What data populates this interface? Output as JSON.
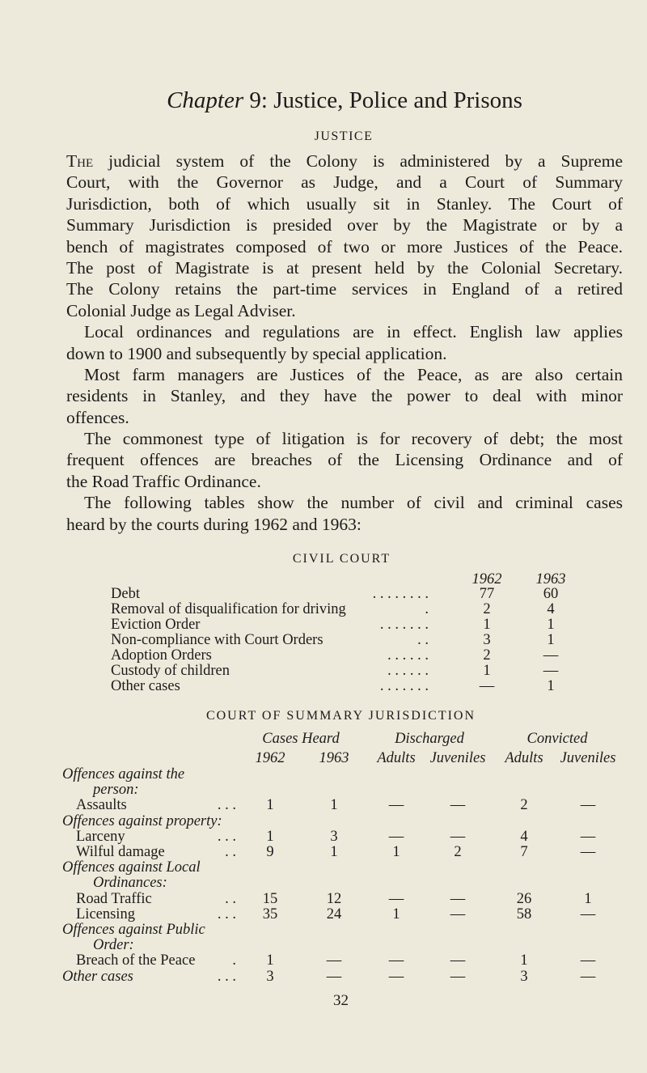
{
  "title": {
    "chapter_word": "Chapter",
    "rest": "9: Justice, Police and Prisons"
  },
  "section_heading": "JUSTICE",
  "paragraphs": [
    {
      "lead": "The",
      "lines": [
        " judicial system of the Colony is administered by a Supreme",
        "Court, with the Governor as Judge, and a Court of Summary",
        "Jurisdiction, both of which usually sit in Stanley. The Court of",
        "Summary Jurisdiction is presided over by the Magistrate or by a",
        "bench of magistrates composed of two or more Justices of the Peace.",
        "The post of Magistrate is at present held by the Colonial Secretary.",
        "The Colony retains the part-time services in England of a retired",
        "Colonial Judge as Legal Adviser."
      ]
    },
    {
      "lines": [
        "Local ordinances and regulations are in effect. English law applies",
        "down to 1900 and subsequently by special application."
      ]
    },
    {
      "lines": [
        "Most farm managers are Justices of the Peace, as are also certain",
        "residents in Stanley, and they have the power to deal with minor",
        "offences."
      ]
    },
    {
      "lines": [
        "The commonest type of litigation is for recovery of debt; the most",
        "frequent offences are breaches of the Licensing Ordinance and of",
        "the Road Traffic Ordinance."
      ]
    },
    {
      "lines": [
        "The following tables show the number of civil and criminal cases",
        "heard by the courts during 1962 and 1963:"
      ]
    }
  ],
  "civil_court": {
    "heading": "CIVIL COURT",
    "columns": [
      "1962",
      "1963"
    ],
    "rows": [
      {
        "label": "Debt",
        "dots": ".  .  .  .  .  .  .  .",
        "v1962": "77",
        "v1963": "60"
      },
      {
        "label": "Removal of disqualification for driving",
        "dots": ".",
        "v1962": "2",
        "v1963": "4"
      },
      {
        "label": "Eviction Order",
        "dots": ".  .  .  .  .  .  .",
        "v1962": "1",
        "v1963": "1"
      },
      {
        "label": "Non-compliance with Court Orders",
        "dots": ".  .",
        "v1962": "3",
        "v1963": "1"
      },
      {
        "label": "Adoption Orders",
        "dots": ".  .  .  .  .  .",
        "v1962": "2",
        "v1963": "—"
      },
      {
        "label": "Custody of children",
        "dots": ".  .  .  .  .  .",
        "v1962": "1",
        "v1963": "—"
      },
      {
        "label": "Other cases",
        "dots": ".  .  .  .  .  .  .",
        "v1962": "—",
        "v1963": "1"
      }
    ]
  },
  "summary_court": {
    "heading": "COURT OF SUMMARY JURISDICTION",
    "group_headers": [
      "Cases Heard",
      "Discharged",
      "Convicted"
    ],
    "sub_headers": [
      "1962",
      "1963",
      "Adults",
      "Juveniles",
      "Adults",
      "Juveniles"
    ],
    "rows": [
      {
        "type": "group",
        "label": "Offences against the"
      },
      {
        "type": "group-cont",
        "label": "person:"
      },
      {
        "type": "item",
        "label": "Assaults",
        "dots": ".   .   .",
        "values": [
          "1",
          "1",
          "—",
          "—",
          "2",
          "—"
        ]
      },
      {
        "type": "group",
        "label": "Offences against property:"
      },
      {
        "type": "item",
        "label": "Larceny",
        "dots": ".   .   .",
        "values": [
          "1",
          "3",
          "—",
          "—",
          "4",
          "—"
        ]
      },
      {
        "type": "item",
        "label": "Wilful damage",
        "dots": ".      .",
        "values": [
          "9",
          "1",
          "1",
          "2",
          "7",
          "—"
        ]
      },
      {
        "type": "group",
        "label": "Offences against Local"
      },
      {
        "type": "group-cont",
        "label": "Ordinances:"
      },
      {
        "type": "item",
        "label": "Road Traffic",
        "dots": ".    .",
        "values": [
          "15",
          "12",
          "—",
          "—",
          "26",
          "1"
        ]
      },
      {
        "type": "item",
        "label": "Licensing",
        "dots": ".   .   .",
        "values": [
          "35",
          "24",
          "1",
          "—",
          "58",
          "—"
        ]
      },
      {
        "type": "group",
        "label": "Offences against Public"
      },
      {
        "type": "group-cont",
        "label": "Order:"
      },
      {
        "type": "item",
        "label": "Breach of the Peace",
        "dots": ".",
        "values": [
          "1",
          "—",
          "—",
          "—",
          "1",
          "—"
        ]
      },
      {
        "type": "group-item",
        "label": "Other cases",
        "dots": ".   .   .",
        "values": [
          "3",
          "—",
          "—",
          "—",
          "3",
          "—"
        ]
      }
    ]
  },
  "page_number": "32"
}
